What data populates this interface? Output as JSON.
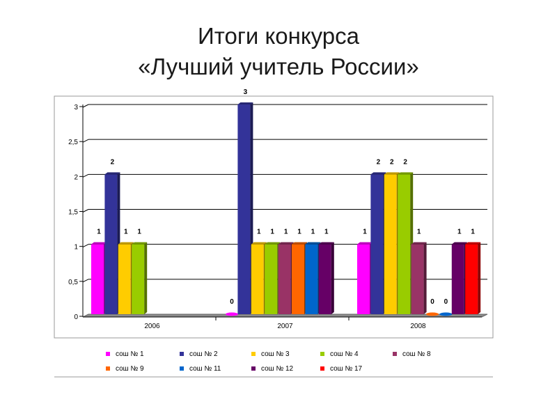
{
  "title_line1": "Итоги конкурса",
  "title_line2": "«Лучший учитель России»",
  "chart_data": {
    "type": "bar",
    "categories": [
      "2006",
      "2007",
      "2008"
    ],
    "ylim": [
      0,
      3
    ],
    "yticks": [
      "0",
      "0,5",
      "1",
      "1,5",
      "2",
      "2,5",
      "3"
    ],
    "grid": true,
    "legend_position": "bottom",
    "series": [
      {
        "name": "сош № 1",
        "color": "#FF00FF",
        "values": [
          1,
          0,
          1
        ]
      },
      {
        "name": "сош № 2",
        "color": "#333399",
        "values": [
          2,
          3,
          2
        ]
      },
      {
        "name": "сош № 3",
        "color": "#FFCC00",
        "values": [
          1,
          1,
          2
        ]
      },
      {
        "name": "сош № 4",
        "color": "#99CC00",
        "values": [
          1,
          1,
          2
        ]
      },
      {
        "name": "сош № 8",
        "color": "#993366",
        "values": [
          null,
          1,
          1
        ]
      },
      {
        "name": "сош № 9",
        "color": "#FF6600",
        "values": [
          null,
          1,
          0
        ]
      },
      {
        "name": "сош № 11",
        "color": "#0066CC",
        "values": [
          null,
          1,
          0
        ]
      },
      {
        "name": "сош № 12",
        "color": "#660066",
        "values": [
          null,
          1,
          1
        ]
      },
      {
        "name": "сош № 17",
        "color": "#FF0000",
        "values": [
          null,
          null,
          1
        ]
      }
    ],
    "data_labels": [
      [
        "1",
        "2",
        "1",
        "1",
        "",
        "",
        "",
        "",
        ""
      ],
      [
        "0",
        "3",
        "1",
        "1",
        "1",
        "1",
        "1",
        "1",
        ""
      ],
      [
        "1",
        "2",
        "2",
        "2",
        "1",
        "0",
        "0",
        "1",
        "1"
      ]
    ]
  }
}
